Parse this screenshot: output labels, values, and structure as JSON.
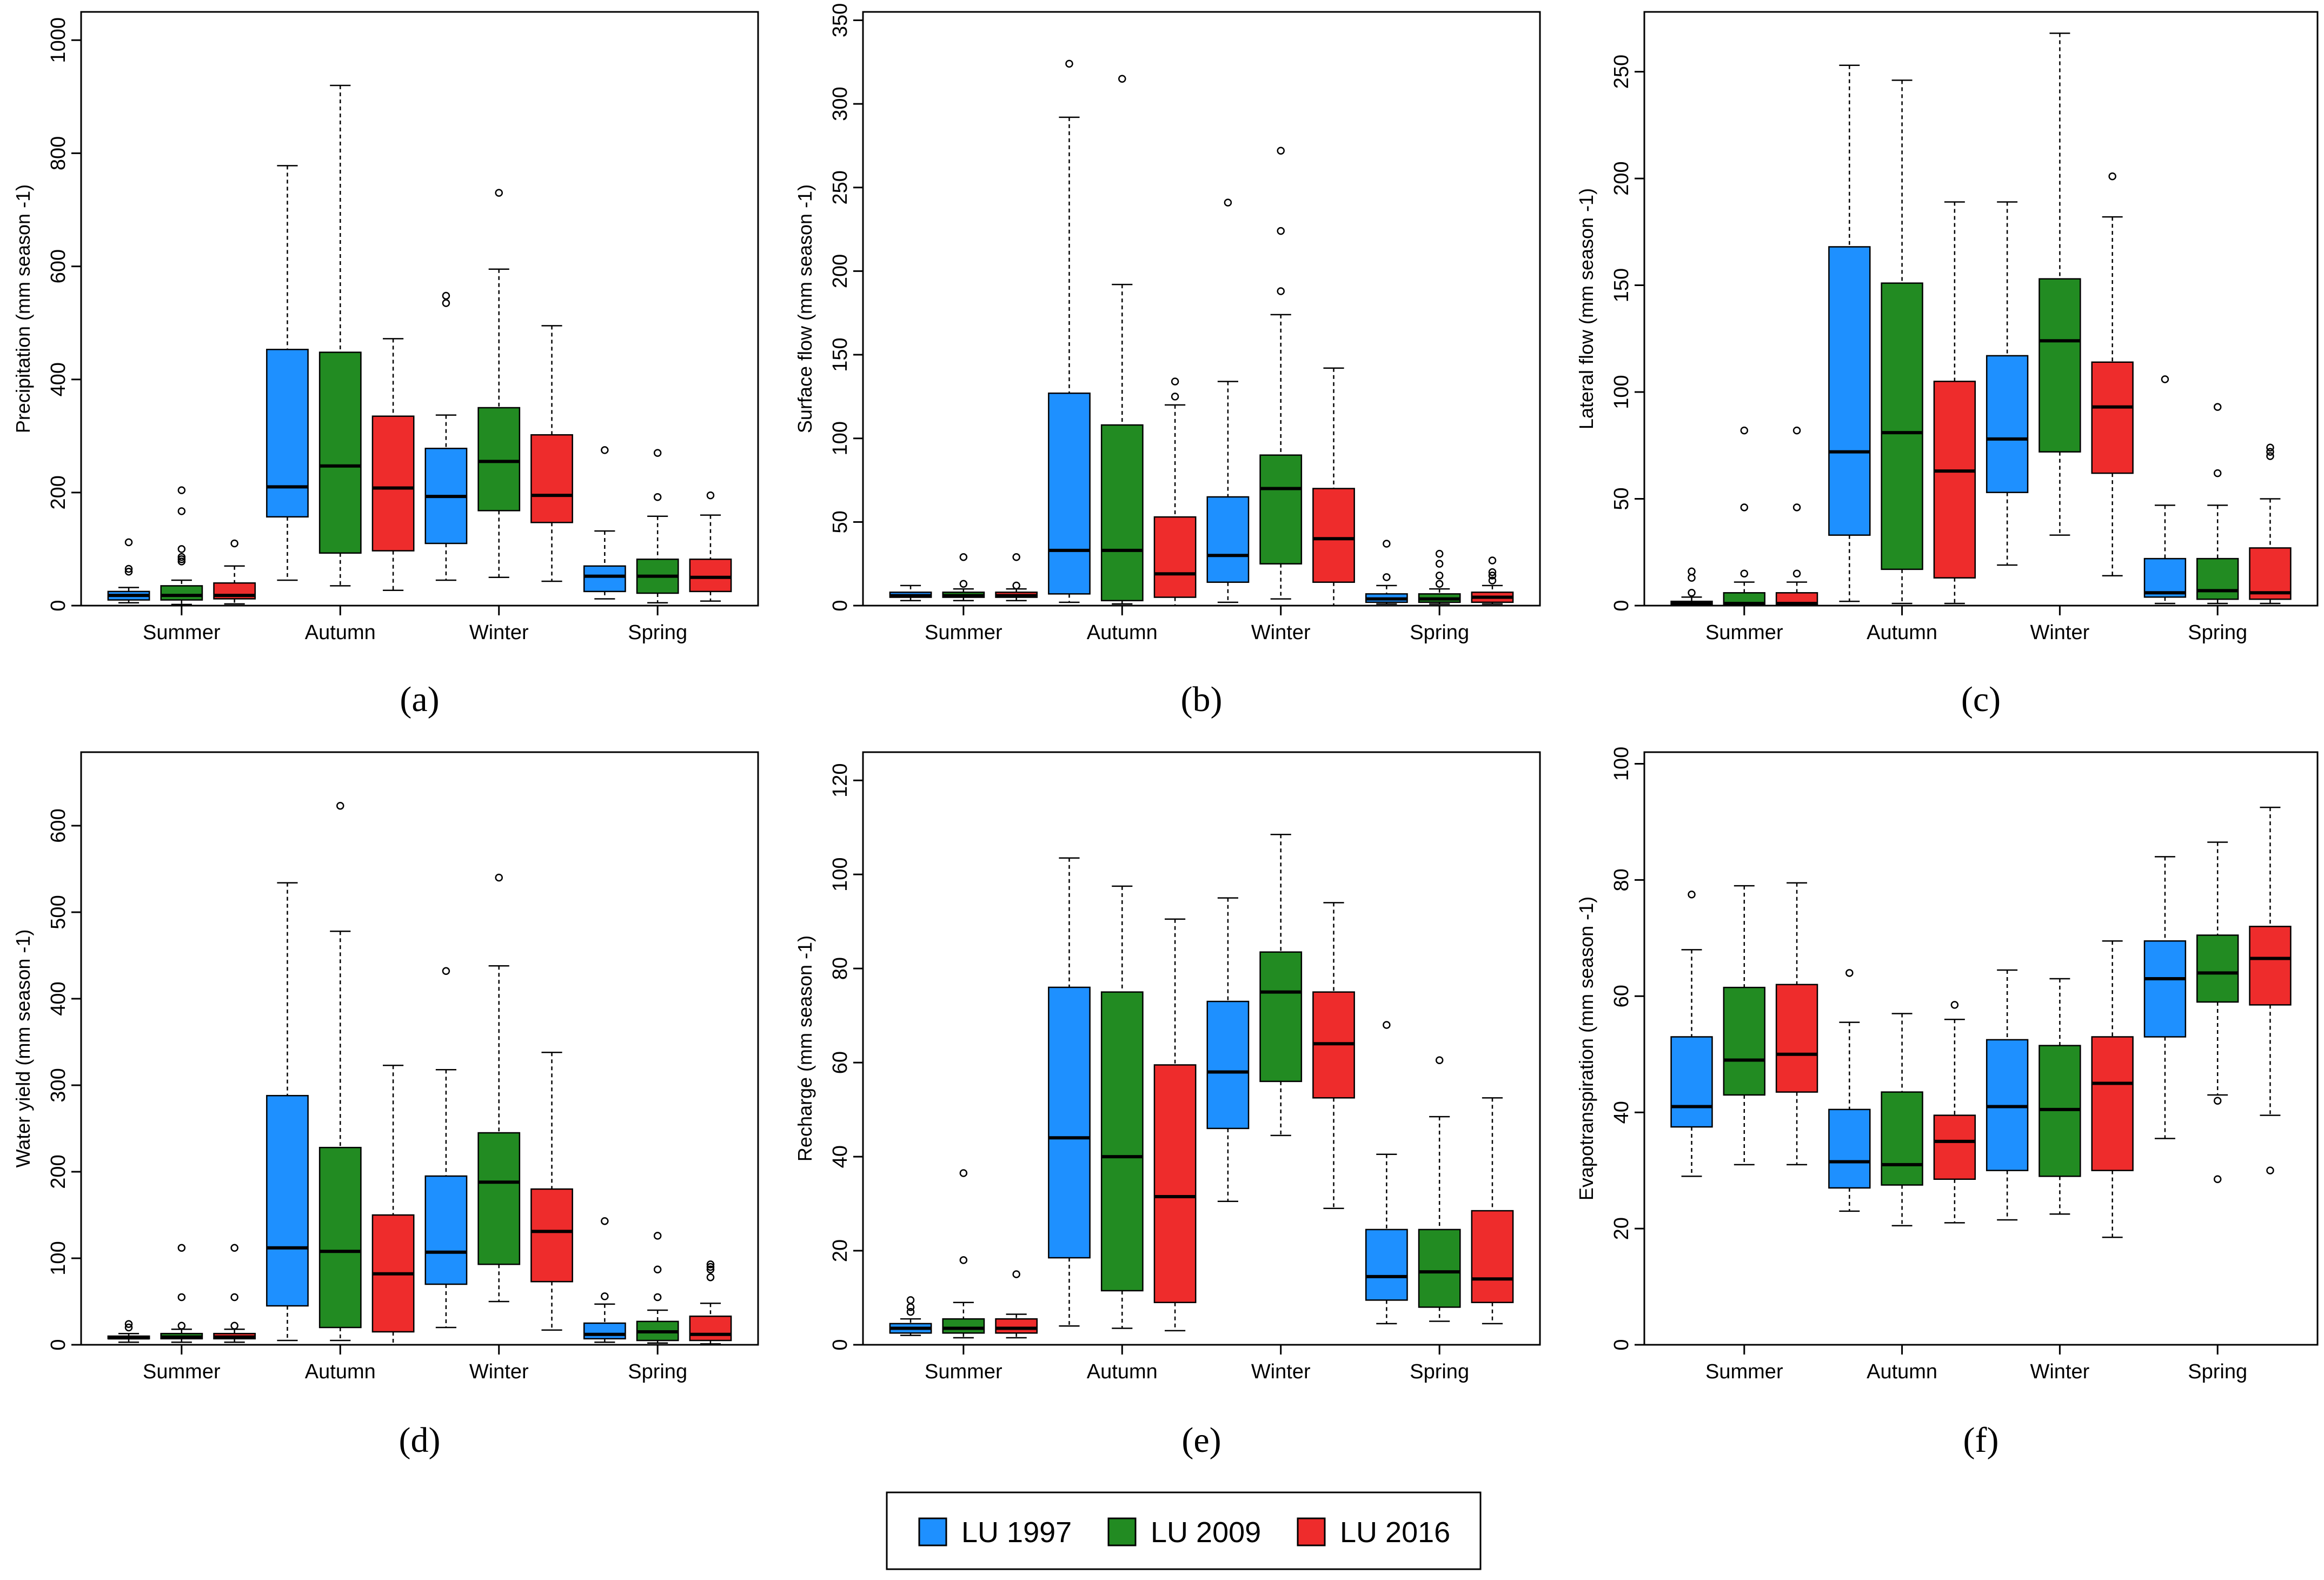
{
  "colors": {
    "LU 1997": "#1E90FF",
    "LU 2009": "#228B22",
    "LU 2016": "#EE2C2C"
  },
  "legend": {
    "items": [
      "LU 1997",
      "LU 2009",
      "LU 2016"
    ]
  },
  "chart_data": [
    {
      "panel": "(a)",
      "type": "box",
      "ylabel": "Precipitation (mm season -1)",
      "ylim": [
        0,
        1050
      ],
      "yticks": [
        0,
        200,
        400,
        600,
        800,
        1000
      ],
      "categories": [
        "Summer",
        "Autumn",
        "Winter",
        "Spring"
      ],
      "series": [
        {
          "name": "LU 1997",
          "boxes": [
            {
              "lw": 5,
              "q1": 10,
              "med": 18,
              "q3": 25,
              "uw": 32,
              "outliers": [
                60,
                65,
                112
              ]
            },
            {
              "lw": 45,
              "q1": 157,
              "med": 210,
              "q3": 453,
              "uw": 778,
              "outliers": []
            },
            {
              "lw": 45,
              "q1": 110,
              "med": 193,
              "q3": 278,
              "uw": 337,
              "outliers": [
                535,
                548
              ]
            },
            {
              "lw": 12,
              "q1": 25,
              "med": 52,
              "q3": 70,
              "uw": 132,
              "outliers": [
                275
              ]
            }
          ]
        },
        {
          "name": "LU 2009",
          "boxes": [
            {
              "lw": 2,
              "q1": 10,
              "med": 18,
              "q3": 35,
              "uw": 45,
              "outliers": [
                78,
                82,
                86,
                100,
                167,
                204
              ]
            },
            {
              "lw": 35,
              "q1": 93,
              "med": 247,
              "q3": 448,
              "uw": 920,
              "outliers": []
            },
            {
              "lw": 50,
              "q1": 168,
              "med": 255,
              "q3": 350,
              "uw": 595,
              "outliers": [
                730
              ]
            },
            {
              "lw": 5,
              "q1": 22,
              "med": 52,
              "q3": 82,
              "uw": 158,
              "outliers": [
                192,
                270
              ]
            }
          ]
        },
        {
          "name": "LU 2016",
          "boxes": [
            {
              "lw": 3,
              "q1": 12,
              "med": 18,
              "q3": 40,
              "uw": 70,
              "outliers": [
                110
              ]
            },
            {
              "lw": 27,
              "q1": 97,
              "med": 208,
              "q3": 335,
              "uw": 472,
              "outliers": []
            },
            {
              "lw": 43,
              "q1": 147,
              "med": 195,
              "q3": 302,
              "uw": 495,
              "outliers": []
            },
            {
              "lw": 8,
              "q1": 25,
              "med": 50,
              "q3": 82,
              "uw": 160,
              "outliers": [
                195
              ]
            }
          ]
        }
      ]
    },
    {
      "panel": "(b)",
      "type": "box",
      "ylabel": "Surface flow (mm season -1)",
      "ylim": [
        0,
        355
      ],
      "yticks": [
        0,
        50,
        100,
        150,
        200,
        250,
        300,
        350
      ],
      "categories": [
        "Summer",
        "Autumn",
        "Winter",
        "Spring"
      ],
      "series": [
        {
          "name": "LU 1997",
          "boxes": [
            {
              "lw": 3,
              "q1": 5,
              "med": 6,
              "q3": 8,
              "uw": 12,
              "outliers": []
            },
            {
              "lw": 2,
              "q1": 7,
              "med": 33,
              "q3": 127,
              "uw": 292,
              "outliers": [
                324
              ]
            },
            {
              "lw": 2,
              "q1": 14,
              "med": 30,
              "q3": 65,
              "uw": 134,
              "outliers": [
                241
              ]
            },
            {
              "lw": 1,
              "q1": 2,
              "med": 4,
              "q3": 7,
              "uw": 12,
              "outliers": [
                17,
                37
              ]
            }
          ]
        },
        {
          "name": "LU 2009",
          "boxes": [
            {
              "lw": 3,
              "q1": 5,
              "med": 6,
              "q3": 8,
              "uw": 10,
              "outliers": [
                13,
                29
              ]
            },
            {
              "lw": 1,
              "q1": 3,
              "med": 33,
              "q3": 108,
              "uw": 192,
              "outliers": [
                315
              ]
            },
            {
              "lw": 4,
              "q1": 25,
              "med": 70,
              "q3": 90,
              "uw": 174,
              "outliers": [
                188,
                224,
                272
              ]
            },
            {
              "lw": 1,
              "q1": 2,
              "med": 4,
              "q3": 7,
              "uw": 10,
              "outliers": [
                13,
                18,
                25,
                31
              ]
            }
          ]
        },
        {
          "name": "LU 2016",
          "boxes": [
            {
              "lw": 3,
              "q1": 5,
              "med": 6,
              "q3": 8,
              "uw": 10,
              "outliers": [
                12,
                29
              ]
            },
            {
              "lw": 0,
              "q1": 5,
              "med": 19,
              "q3": 53,
              "uw": 120,
              "outliers": [
                125,
                134
              ]
            },
            {
              "lw": 0,
              "q1": 14,
              "med": 40,
              "q3": 70,
              "uw": 142,
              "outliers": []
            },
            {
              "lw": 1,
              "q1": 2,
              "med": 5,
              "q3": 8,
              "uw": 12,
              "outliers": [
                15,
                18,
                20,
                27
              ]
            }
          ]
        }
      ]
    },
    {
      "panel": "(c)",
      "type": "box",
      "ylabel": "Lateral flow (mm season -1)",
      "ylim": [
        0,
        278
      ],
      "yticks": [
        0,
        50,
        100,
        150,
        200,
        250
      ],
      "categories": [
        "Summer",
        "Autumn",
        "Winter",
        "Spring"
      ],
      "series": [
        {
          "name": "LU 1997",
          "boxes": [
            {
              "lw": 0,
              "q1": 0,
              "med": 1,
              "q3": 2,
              "uw": 4,
              "outliers": [
                6,
                13,
                16
              ]
            },
            {
              "lw": 2,
              "q1": 33,
              "med": 72,
              "q3": 168,
              "uw": 253,
              "outliers": []
            },
            {
              "lw": 19,
              "q1": 53,
              "med": 78,
              "q3": 117,
              "uw": 189,
              "outliers": []
            },
            {
              "lw": 1,
              "q1": 4,
              "med": 6,
              "q3": 22,
              "uw": 47,
              "outliers": [
                106
              ]
            }
          ]
        },
        {
          "name": "LU 2009",
          "boxes": [
            {
              "lw": 0,
              "q1": 0,
              "med": 1,
              "q3": 6,
              "uw": 11,
              "outliers": [
                15,
                46,
                82
              ]
            },
            {
              "lw": 1,
              "q1": 17,
              "med": 81,
              "q3": 151,
              "uw": 246,
              "outliers": []
            },
            {
              "lw": 33,
              "q1": 72,
              "med": 124,
              "q3": 153,
              "uw": 268,
              "outliers": []
            },
            {
              "lw": 1,
              "q1": 3,
              "med": 7,
              "q3": 22,
              "uw": 47,
              "outliers": [
                62,
                93
              ]
            }
          ]
        },
        {
          "name": "LU 2016",
          "boxes": [
            {
              "lw": 0,
              "q1": 0,
              "med": 1,
              "q3": 6,
              "uw": 11,
              "outliers": [
                15,
                46,
                82
              ]
            },
            {
              "lw": 1,
              "q1": 13,
              "med": 63,
              "q3": 105,
              "uw": 189,
              "outliers": []
            },
            {
              "lw": 14,
              "q1": 62,
              "med": 93,
              "q3": 114,
              "uw": 182,
              "outliers": [
                201
              ]
            },
            {
              "lw": 1,
              "q1": 3,
              "med": 6,
              "q3": 27,
              "uw": 50,
              "outliers": [
                70,
                72,
                74
              ]
            }
          ]
        }
      ]
    },
    {
      "panel": "(d)",
      "type": "box",
      "ylabel": "Water yield (mm season -1)",
      "ylim": [
        0,
        685
      ],
      "yticks": [
        0,
        100,
        200,
        300,
        400,
        500,
        600
      ],
      "categories": [
        "Summer",
        "Autumn",
        "Winter",
        "Spring"
      ],
      "series": [
        {
          "name": "LU 1997",
          "boxes": [
            {
              "lw": 3,
              "q1": 7,
              "med": 8,
              "q3": 10,
              "uw": 13,
              "outliers": [
                20,
                24
              ]
            },
            {
              "lw": 5,
              "q1": 45,
              "med": 112,
              "q3": 288,
              "uw": 534,
              "outliers": []
            },
            {
              "lw": 20,
              "q1": 70,
              "med": 107,
              "q3": 195,
              "uw": 318,
              "outliers": [
                432
              ]
            },
            {
              "lw": 3,
              "q1": 7,
              "med": 12,
              "q3": 25,
              "uw": 47,
              "outliers": [
                56,
                143
              ]
            }
          ]
        },
        {
          "name": "LU 2009",
          "boxes": [
            {
              "lw": 3,
              "q1": 7,
              "med": 9,
              "q3": 13,
              "uw": 18,
              "outliers": [
                22,
                55,
                112
              ]
            },
            {
              "lw": 5,
              "q1": 20,
              "med": 108,
              "q3": 228,
              "uw": 478,
              "outliers": [
                623
              ]
            },
            {
              "lw": 50,
              "q1": 93,
              "med": 188,
              "q3": 245,
              "uw": 438,
              "outliers": [
                540
              ]
            },
            {
              "lw": 2,
              "q1": 5,
              "med": 15,
              "q3": 27,
              "uw": 40,
              "outliers": [
                55,
                87,
                126
              ]
            }
          ]
        },
        {
          "name": "LU 2016",
          "boxes": [
            {
              "lw": 3,
              "q1": 7,
              "med": 9,
              "q3": 13,
              "uw": 18,
              "outliers": [
                22,
                55,
                112
              ]
            },
            {
              "lw": 0,
              "q1": 15,
              "med": 82,
              "q3": 150,
              "uw": 323,
              "outliers": []
            },
            {
              "lw": 17,
              "q1": 73,
              "med": 131,
              "q3": 180,
              "uw": 338,
              "outliers": []
            },
            {
              "lw": 1,
              "q1": 5,
              "med": 12,
              "q3": 33,
              "uw": 48,
              "outliers": [
                78,
                87,
                90,
                93
              ]
            }
          ]
        }
      ]
    },
    {
      "panel": "(e)",
      "type": "box",
      "ylabel": "Recharge (mm season -1)",
      "ylim": [
        0,
        126
      ],
      "yticks": [
        0,
        20,
        40,
        60,
        80,
        100,
        120
      ],
      "categories": [
        "Summer",
        "Autumn",
        "Winter",
        "Spring"
      ],
      "series": [
        {
          "name": "LU 1997",
          "boxes": [
            {
              "lw": 2,
              "q1": 2.5,
              "med": 3.5,
              "q3": 4.5,
              "uw": 5.5,
              "outliers": [
                7,
                8,
                9.5
              ]
            },
            {
              "lw": 4,
              "q1": 18.5,
              "med": 44,
              "q3": 76,
              "uw": 103.5,
              "outliers": []
            },
            {
              "lw": 30.5,
              "q1": 46,
              "med": 58,
              "q3": 73,
              "uw": 95,
              "outliers": []
            },
            {
              "lw": 4.5,
              "q1": 9.5,
              "med": 14.5,
              "q3": 24.5,
              "uw": 40.5,
              "outliers": [
                68
              ]
            }
          ]
        },
        {
          "name": "LU 2009",
          "boxes": [
            {
              "lw": 1.5,
              "q1": 2.5,
              "med": 3.5,
              "q3": 5.5,
              "uw": 9,
              "outliers": [
                18,
                36.5
              ]
            },
            {
              "lw": 3.5,
              "q1": 11.5,
              "med": 40,
              "q3": 75,
              "uw": 97.5,
              "outliers": []
            },
            {
              "lw": 44.5,
              "q1": 56,
              "med": 75,
              "q3": 83.5,
              "uw": 108.5,
              "outliers": []
            },
            {
              "lw": 5,
              "q1": 8,
              "med": 15.5,
              "q3": 24.5,
              "uw": 48.5,
              "outliers": [
                60.5
              ]
            }
          ]
        },
        {
          "name": "LU 2016",
          "boxes": [
            {
              "lw": 1.5,
              "q1": 2.5,
              "med": 3.5,
              "q3": 5.5,
              "uw": 6.5,
              "outliers": [
                15
              ]
            },
            {
              "lw": 3,
              "q1": 9,
              "med": 31.5,
              "q3": 59.5,
              "uw": 90.5,
              "outliers": []
            },
            {
              "lw": 29,
              "q1": 52.5,
              "med": 64,
              "q3": 75,
              "uw": 94,
              "outliers": []
            },
            {
              "lw": 4.5,
              "q1": 9,
              "med": 14,
              "q3": 28.5,
              "uw": 52.5,
              "outliers": []
            }
          ]
        }
      ]
    },
    {
      "panel": "(f)",
      "type": "box",
      "ylabel": "Evapotranspiration (mm season -1)",
      "ylim": [
        0,
        102
      ],
      "yticks": [
        0,
        20,
        40,
        60,
        80,
        100
      ],
      "categories": [
        "Summer",
        "Autumn",
        "Winter",
        "Spring"
      ],
      "series": [
        {
          "name": "LU 1997",
          "boxes": [
            {
              "lw": 29,
              "q1": 37.5,
              "med": 41,
              "q3": 53,
              "uw": 68,
              "outliers": [
                77.5
              ]
            },
            {
              "lw": 23,
              "q1": 27,
              "med": 31.5,
              "q3": 40.5,
              "uw": 55.5,
              "outliers": [
                64
              ]
            },
            {
              "lw": 21.5,
              "q1": 30,
              "med": 41,
              "q3": 52.5,
              "uw": 64.5,
              "outliers": []
            },
            {
              "lw": 35.5,
              "q1": 53,
              "med": 63,
              "q3": 69.5,
              "uw": 84,
              "outliers": []
            }
          ]
        },
        {
          "name": "LU 2009",
          "boxes": [
            {
              "lw": 31,
              "q1": 43,
              "med": 49,
              "q3": 61.5,
              "uw": 79,
              "outliers": []
            },
            {
              "lw": 20.5,
              "q1": 27.5,
              "med": 31,
              "q3": 43.5,
              "uw": 57,
              "outliers": []
            },
            {
              "lw": 22.5,
              "q1": 29,
              "med": 40.5,
              "q3": 51.5,
              "uw": 63,
              "outliers": []
            },
            {
              "lw": 43,
              "q1": 59,
              "med": 64,
              "q3": 70.5,
              "uw": 86.5,
              "outliers": [
                28.5,
                42
              ]
            }
          ]
        },
        {
          "name": "LU 2016",
          "boxes": [
            {
              "lw": 31,
              "q1": 43.5,
              "med": 50,
              "q3": 62,
              "uw": 79.5,
              "outliers": []
            },
            {
              "lw": 21,
              "q1": 28.5,
              "med": 35,
              "q3": 39.5,
              "uw": 56,
              "outliers": [
                58.5
              ]
            },
            {
              "lw": 18.5,
              "q1": 30,
              "med": 45,
              "q3": 53,
              "uw": 69.5,
              "outliers": []
            },
            {
              "lw": 39.5,
              "q1": 58.5,
              "med": 66.5,
              "q3": 72,
              "uw": 92.5,
              "outliers": [
                30
              ]
            }
          ]
        }
      ]
    }
  ]
}
